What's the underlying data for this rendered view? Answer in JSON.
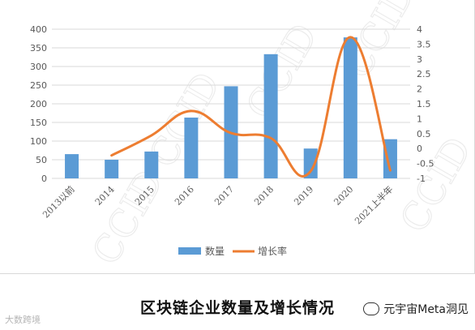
{
  "caption": "区块链企业数量及增长情况",
  "watermark_left": "大数跨境",
  "watermark_right": "元宇宙Meta洞见",
  "watermark_bg": "CCID",
  "colors": {
    "bar": "#5b9bd5",
    "line": "#ed7d31",
    "grid": "#d9d9d9",
    "text": "#595959"
  },
  "chart_data": {
    "type": "bar+line",
    "categories": [
      "2013以前",
      "2014",
      "2015",
      "2016",
      "2017",
      "2018",
      "2019",
      "2020",
      "2021上半年"
    ],
    "series": [
      {
        "name": "数量",
        "type": "bar",
        "axis": "left",
        "values": [
          65,
          50,
          72,
          163,
          247,
          333,
          80,
          378,
          105
        ]
      },
      {
        "name": "增长率",
        "type": "line",
        "axis": "right",
        "values": [
          null,
          -0.23,
          0.44,
          1.26,
          0.52,
          0.35,
          -0.76,
          3.73,
          -0.73
        ]
      }
    ],
    "y_left": {
      "min": 0,
      "max": 400,
      "step": 50,
      "ticks": [
        "0",
        "50",
        "100",
        "150",
        "200",
        "250",
        "300",
        "350",
        "400"
      ]
    },
    "y_right": {
      "min": -1,
      "max": 4,
      "step": 0.5,
      "ticks": [
        "-1",
        "-0.5",
        "0",
        "0.5",
        "1",
        "1.5",
        "2",
        "2.5",
        "3",
        "3.5",
        "4"
      ]
    },
    "grid": true,
    "legend": "bottom"
  }
}
